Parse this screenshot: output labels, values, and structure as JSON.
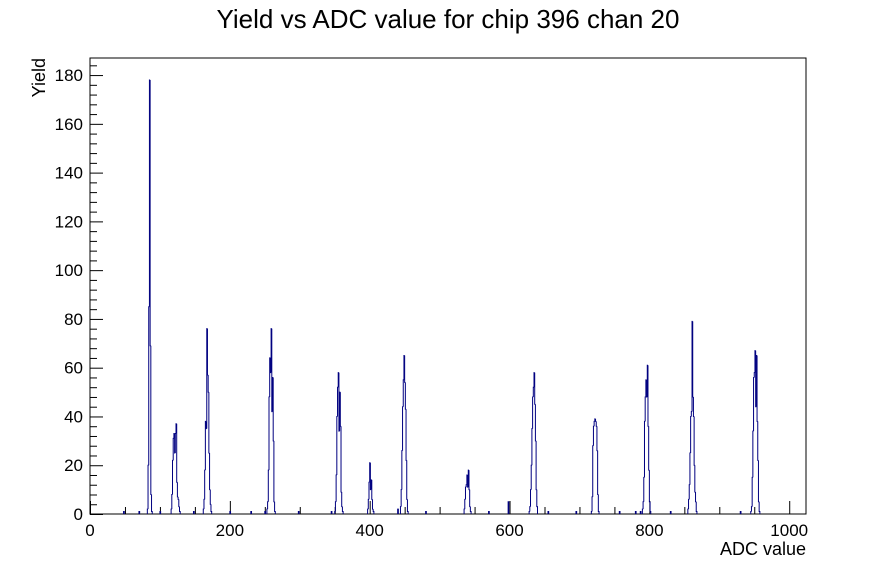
{
  "chart_data": {
    "type": "bar",
    "style": "histogram-step",
    "title": "Yield vs ADC value for chip 396 chan 20",
    "xlabel": "ADC value",
    "ylabel": "Yield",
    "xlim": [
      0,
      1024
    ],
    "ylim": [
      0,
      187
    ],
    "xticks": [
      0,
      200,
      400,
      600,
      800,
      1000
    ],
    "yticks": [
      0,
      20,
      40,
      60,
      80,
      100,
      120,
      140,
      160,
      180
    ],
    "grid": false,
    "line_color": "#000080",
    "series": [
      {
        "bins": [
          [
            48,
            1
          ],
          [
            70,
            1
          ],
          [
            82,
            2
          ],
          [
            83,
            20
          ],
          [
            84,
            85
          ],
          [
            85,
            178
          ],
          [
            86,
            69
          ],
          [
            87,
            8
          ],
          [
            88,
            1
          ],
          [
            100,
            1
          ],
          [
            116,
            2
          ],
          [
            117,
            8
          ],
          [
            118,
            22
          ],
          [
            119,
            31
          ],
          [
            120,
            33
          ],
          [
            121,
            25
          ],
          [
            122,
            33
          ],
          [
            123,
            37
          ],
          [
            124,
            13
          ],
          [
            125,
            7
          ],
          [
            126,
            6
          ],
          [
            127,
            3
          ],
          [
            128,
            1
          ],
          [
            148,
            1
          ],
          [
            162,
            2
          ],
          [
            163,
            6
          ],
          [
            164,
            18
          ],
          [
            165,
            38
          ],
          [
            166,
            35
          ],
          [
            167,
            76
          ],
          [
            168,
            57
          ],
          [
            169,
            50
          ],
          [
            170,
            25
          ],
          [
            171,
            10
          ],
          [
            172,
            4
          ],
          [
            173,
            1
          ],
          [
            200,
            1
          ],
          [
            230,
            1
          ],
          [
            250,
            1
          ],
          [
            253,
            2
          ],
          [
            254,
            5
          ],
          [
            255,
            18
          ],
          [
            256,
            48
          ],
          [
            257,
            64
          ],
          [
            258,
            58
          ],
          [
            259,
            76
          ],
          [
            260,
            42
          ],
          [
            261,
            56
          ],
          [
            262,
            30
          ],
          [
            263,
            5
          ],
          [
            264,
            1
          ],
          [
            298,
            1
          ],
          [
            345,
            1
          ],
          [
            350,
            1
          ],
          [
            351,
            5
          ],
          [
            352,
            16
          ],
          [
            353,
            40
          ],
          [
            354,
            52
          ],
          [
            355,
            58
          ],
          [
            356,
            34
          ],
          [
            357,
            50
          ],
          [
            358,
            36
          ],
          [
            359,
            9
          ],
          [
            360,
            3
          ],
          [
            361,
            1
          ],
          [
            397,
            2
          ],
          [
            398,
            6
          ],
          [
            399,
            13
          ],
          [
            400,
            21
          ],
          [
            401,
            10
          ],
          [
            402,
            14
          ],
          [
            403,
            6
          ],
          [
            404,
            2
          ],
          [
            405,
            1
          ],
          [
            440,
            2
          ],
          [
            444,
            3
          ],
          [
            445,
            10
          ],
          [
            446,
            26
          ],
          [
            447,
            44
          ],
          [
            448,
            55
          ],
          [
            449,
            65
          ],
          [
            450,
            54
          ],
          [
            451,
            43
          ],
          [
            452,
            22
          ],
          [
            453,
            6
          ],
          [
            454,
            1
          ],
          [
            480,
            1
          ],
          [
            535,
            2
          ],
          [
            536,
            6
          ],
          [
            537,
            11
          ],
          [
            538,
            12
          ],
          [
            539,
            16
          ],
          [
            540,
            11
          ],
          [
            541,
            18
          ],
          [
            542,
            10
          ],
          [
            543,
            3
          ],
          [
            544,
            1
          ],
          [
            570,
            1
          ],
          [
            598,
            5
          ],
          [
            628,
            1
          ],
          [
            629,
            3
          ],
          [
            630,
            10
          ],
          [
            631,
            20
          ],
          [
            632,
            35
          ],
          [
            633,
            48
          ],
          [
            634,
            52
          ],
          [
            635,
            58
          ],
          [
            636,
            45
          ],
          [
            637,
            30
          ],
          [
            638,
            10
          ],
          [
            639,
            3
          ],
          [
            655,
            1
          ],
          [
            695,
            1
          ],
          [
            717,
            1
          ],
          [
            718,
            7
          ],
          [
            719,
            28
          ],
          [
            720,
            36
          ],
          [
            721,
            38
          ],
          [
            722,
            39
          ],
          [
            723,
            38
          ],
          [
            724,
            36
          ],
          [
            725,
            26
          ],
          [
            726,
            8
          ],
          [
            727,
            1
          ],
          [
            757,
            1
          ],
          [
            780,
            1
          ],
          [
            787,
            1
          ],
          [
            790,
            2
          ],
          [
            791,
            5
          ],
          [
            792,
            15
          ],
          [
            793,
            38
          ],
          [
            794,
            48
          ],
          [
            795,
            55
          ],
          [
            796,
            48
          ],
          [
            797,
            61
          ],
          [
            798,
            36
          ],
          [
            799,
            18
          ],
          [
            800,
            5
          ],
          [
            801,
            1
          ],
          [
            830,
            1
          ],
          [
            855,
            2
          ],
          [
            856,
            6
          ],
          [
            857,
            12
          ],
          [
            858,
            25
          ],
          [
            859,
            40
          ],
          [
            860,
            42
          ],
          [
            861,
            79
          ],
          [
            862,
            48
          ],
          [
            863,
            40
          ],
          [
            864,
            20
          ],
          [
            865,
            9
          ],
          [
            866,
            5
          ],
          [
            867,
            1
          ],
          [
            930,
            1
          ],
          [
            945,
            1
          ],
          [
            946,
            3
          ],
          [
            947,
            15
          ],
          [
            948,
            34
          ],
          [
            949,
            56
          ],
          [
            950,
            58
          ],
          [
            951,
            67
          ],
          [
            952,
            44
          ],
          [
            953,
            65
          ],
          [
            954,
            38
          ],
          [
            955,
            22
          ],
          [
            956,
            5
          ],
          [
            957,
            1
          ]
        ]
      }
    ]
  }
}
